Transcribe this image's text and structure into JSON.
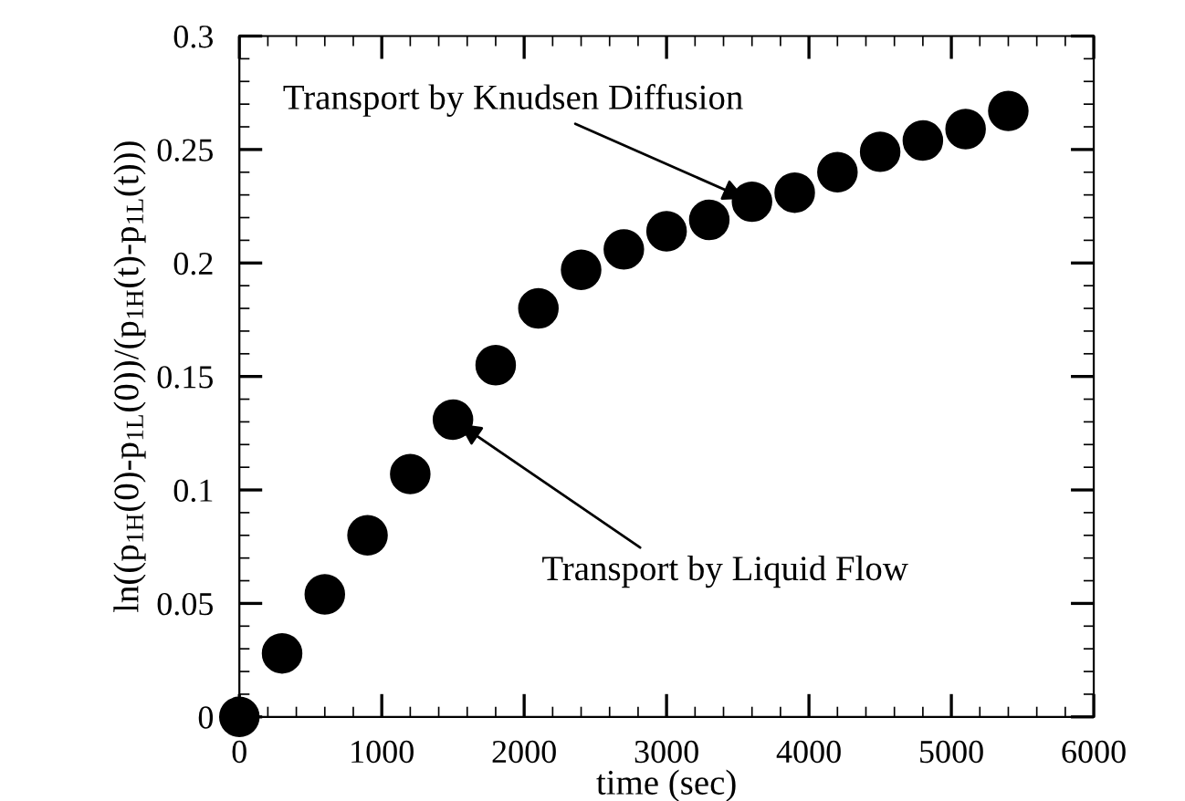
{
  "chart_data": {
    "type": "scatter",
    "xlabel": "time (sec)",
    "ylabel": "ln((p$_{1H}$(0)-p$_{1L}$(0))/(p$_{1H}$(t)-p$_{1L}$(t)))",
    "x": [
      0,
      300,
      600,
      900,
      1200,
      1500,
      1800,
      2100,
      2400,
      2700,
      3000,
      3300,
      3600,
      3900,
      4200,
      4500,
      4800,
      5100,
      5400
    ],
    "series": [
      {
        "color": "#000000",
        "values": [
          0,
          0.028,
          0.054,
          0.08,
          0.107,
          0.131,
          0.155,
          0.18,
          0.197,
          0.206,
          0.214,
          0.219,
          0.227,
          0.231,
          0.24,
          0.249,
          0.254,
          0.259,
          0.267
        ]
      }
    ],
    "xlim": [
      0,
      6000
    ],
    "xticks": [
      0,
      1000,
      2000,
      3000,
      4000,
      5000,
      6000
    ],
    "ylim": [
      0,
      0.3
    ],
    "yticks": [
      0,
      0.05,
      0.1,
      0.15,
      0.2,
      0.25,
      0.3
    ],
    "marker": "circle",
    "grid": false,
    "annotations": [
      {
        "text": "Transport by Knudsen Diffusion",
        "x": 3600,
        "y": 0.227
      },
      {
        "text": "Transport by Liquid Flow",
        "x": 1500,
        "y": 0.131
      }
    ]
  }
}
